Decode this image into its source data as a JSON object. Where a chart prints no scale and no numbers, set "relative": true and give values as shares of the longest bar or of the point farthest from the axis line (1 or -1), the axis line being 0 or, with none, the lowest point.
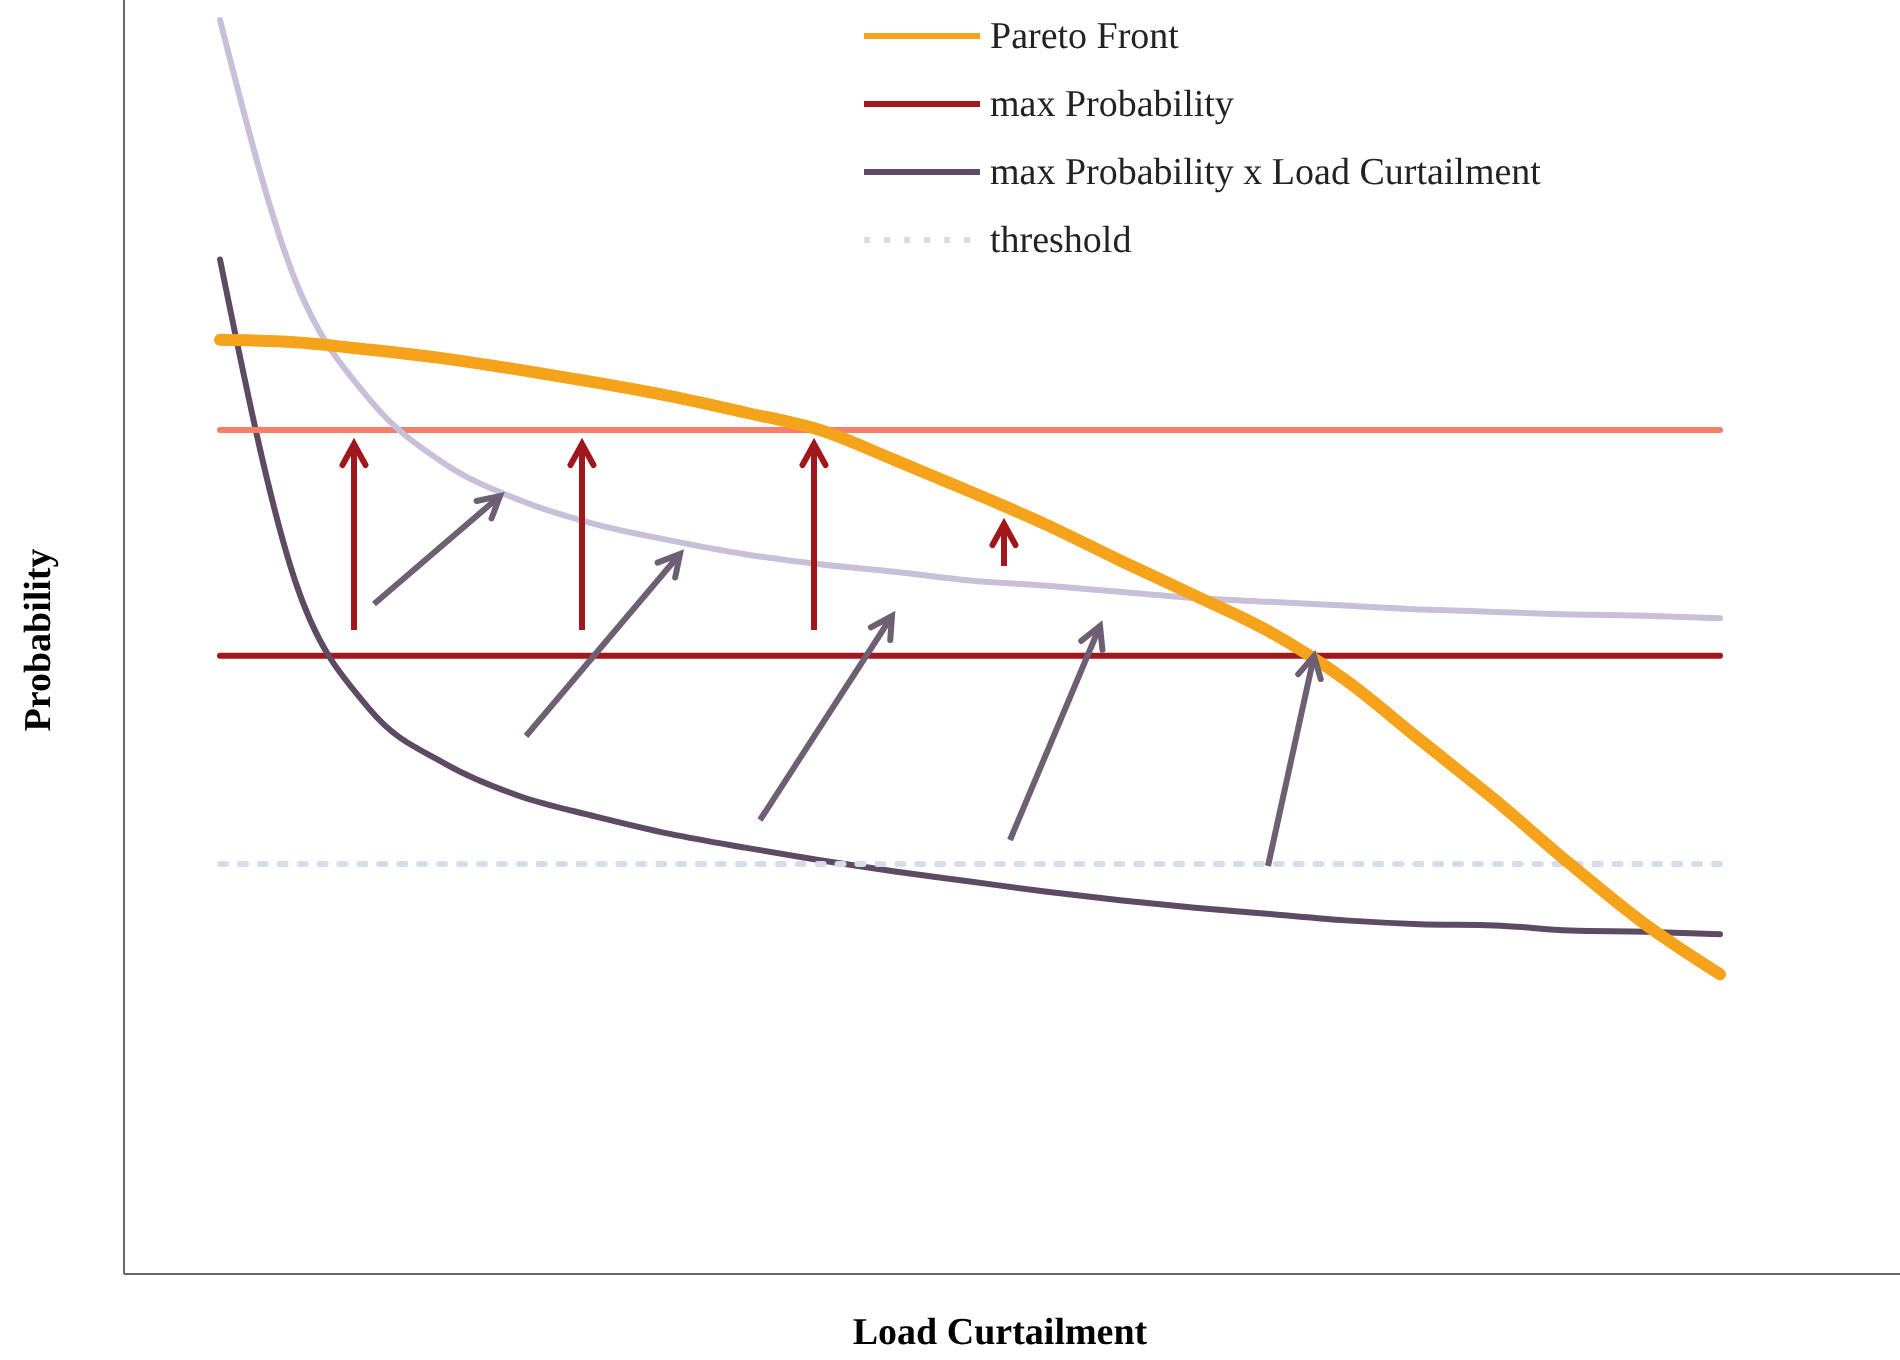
{
  "chart_data": {
    "type": "line",
    "relative": true,
    "xlabel": "Load Curtailment",
    "ylabel": "Probability",
    "legend": "top right",
    "categories": [
      null,
      null,
      null,
      null,
      null,
      null,
      null,
      null,
      null,
      null,
      null,
      null,
      null,
      null,
      null,
      null,
      null,
      null,
      null,
      null,
      null
    ],
    "series": [
      {
        "name": "Pareto Front",
        "color": "#f5a31a",
        "values": [
          0.745,
          0.743,
          0.737,
          0.73,
          0.721,
          0.711,
          0.7,
          0.687,
          0.673,
          0.649,
          0.624,
          0.598,
          0.569,
          0.541,
          0.512,
          0.474,
          0.426,
          0.378,
          0.327,
          0.279,
          0.239
        ]
      },
      {
        "name": "max Probability",
        "color": "#a0171c",
        "values": [
          0.493,
          0.493,
          0.493,
          0.493,
          0.493,
          0.493,
          0.493,
          0.493,
          0.493,
          0.493,
          0.493,
          0.493,
          0.493,
          0.493,
          0.493,
          0.493,
          0.493,
          0.493,
          0.493,
          0.493,
          0.493
        ]
      },
      {
        "name": "max Probability x Load Curtailment",
        "color": "#5e4a63",
        "values": [
          0.809,
          0.553,
          0.45,
          0.407,
          0.381,
          0.365,
          0.351,
          0.34,
          0.33,
          0.321,
          0.313,
          0.305,
          0.298,
          0.292,
          0.287,
          0.282,
          0.279,
          0.278,
          0.274,
          0.273,
          0.271
        ]
      },
      {
        "name": "threshold",
        "color": "#d5dcea",
        "line_style": "dotted",
        "values": [
          0.327,
          0.327,
          0.327,
          0.327,
          0.327,
          0.327,
          0.327,
          0.327,
          0.327,
          0.327,
          0.327,
          0.327,
          0.327,
          0.327,
          0.327,
          0.327,
          0.327,
          0.327,
          0.327,
          0.327,
          0.327
        ]
      },
      {
        "color": "#f47f6a",
        "values": [
          0.673,
          0.673,
          0.673,
          0.673,
          0.673,
          0.673,
          0.673,
          0.673,
          0.673,
          0.673,
          0.673,
          0.673,
          0.673,
          0.673,
          0.673,
          0.673,
          0.673,
          0.673,
          0.673,
          0.673,
          0.673
        ]
      },
      {
        "color": "#c9bfd9",
        "values": [
          1,
          0.793,
          0.697,
          0.646,
          0.617,
          0.598,
          0.585,
          0.574,
          0.566,
          0.56,
          0.553,
          0.549,
          0.544,
          0.539,
          0.536,
          0.533,
          0.53,
          0.528,
          0.526,
          0.525,
          0.523
        ]
      }
    ]
  }
}
